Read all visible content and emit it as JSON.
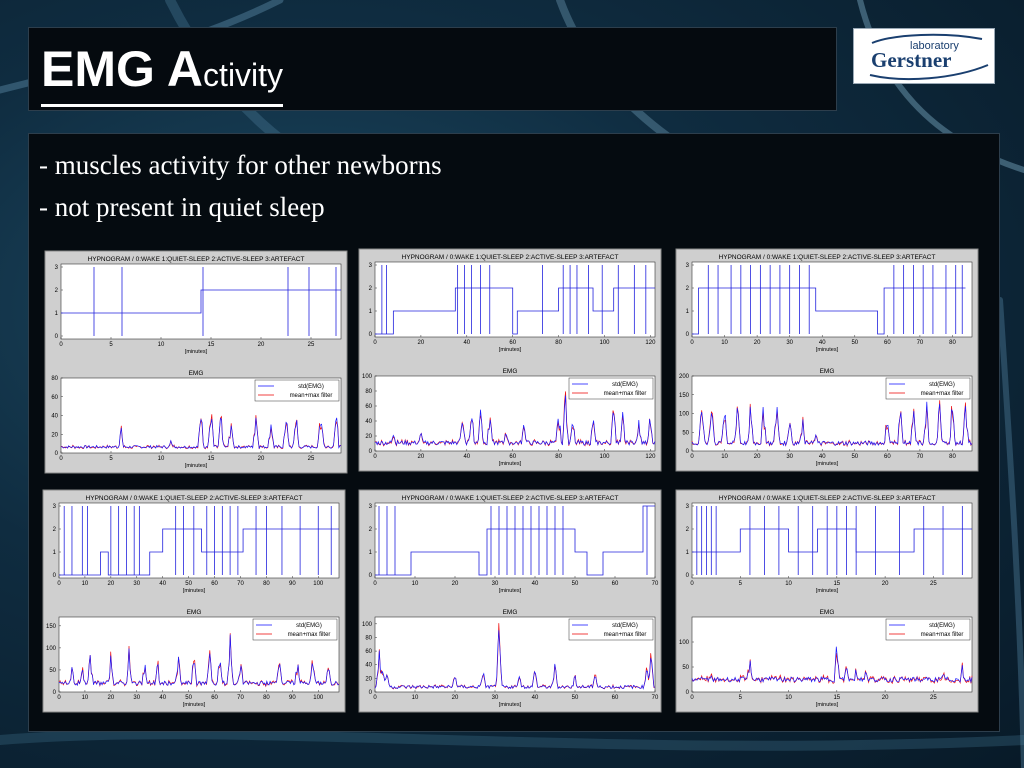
{
  "slide": {
    "title_main": "EMG A",
    "title_rest": "ctivity",
    "bullets": [
      "- muscles activity for other newborns",
      "- not present in quiet sleep"
    ]
  },
  "logo": {
    "top": "laboratory",
    "bottom": "Gerstner",
    "color": "#1a3f6f"
  },
  "colors": {
    "std": "#1a1aff",
    "filter": "#ee1111",
    "hypno": "#2222dd"
  },
  "chart_data": [
    {
      "type": "line",
      "hypnogram": {
        "title": "HYPNOGRAM / 0:WAKE  1:QUIET-SLEEP  2:ACTIVE-SLEEP  3:ARTEFACT",
        "xlabel": "[minutes]",
        "xlim": [
          0,
          28
        ],
        "ylim": [
          0,
          3
        ],
        "xticks": [
          0,
          5,
          10,
          15,
          20,
          25
        ],
        "yticks": [
          0,
          1,
          2,
          3
        ],
        "segments": [
          [
            0,
            1
          ],
          [
            14,
            2
          ],
          [
            28,
            2
          ]
        ],
        "spikes": [
          3.3,
          6.1,
          14.2,
          22.7,
          24.8,
          27.5
        ]
      },
      "emg": {
        "title": "EMG",
        "xlabel": "[minutes]",
        "xlim": [
          0,
          28
        ],
        "ylim": [
          0,
          80
        ],
        "xticks": [
          0,
          5,
          10,
          15,
          20,
          25
        ],
        "yticks": [
          0,
          20,
          40,
          60,
          80
        ],
        "legend": [
          "std(EMG)",
          "mean+max filter"
        ],
        "baseline": 5,
        "noise": 3,
        "bursts": [
          [
            6,
            30
          ],
          [
            11,
            22
          ],
          [
            14,
            50
          ],
          [
            15,
            55
          ],
          [
            16,
            45
          ],
          [
            17,
            40
          ],
          [
            19.5,
            50
          ],
          [
            21,
            45
          ],
          [
            22.5,
            48
          ],
          [
            23.5,
            50
          ],
          [
            26,
            60
          ],
          [
            27.5,
            55
          ]
        ]
      }
    },
    {
      "type": "line",
      "hypnogram": {
        "title": "HYPNOGRAM / 0:WAKE  1:QUIET-SLEEP  2:ACTIVE-SLEEP  3:ARTEFACT",
        "xlabel": "[minutes]",
        "xlim": [
          0,
          122
        ],
        "ylim": [
          0,
          3
        ],
        "xticks": [
          0,
          20,
          40,
          60,
          80,
          100,
          120
        ],
        "yticks": [
          0,
          1,
          2,
          3
        ],
        "segments": [
          [
            0,
            0
          ],
          [
            8,
            1
          ],
          [
            35,
            2
          ],
          [
            60,
            0
          ],
          [
            62,
            1
          ],
          [
            80,
            2
          ],
          [
            95,
            1
          ],
          [
            104,
            2
          ],
          [
            122,
            2
          ]
        ],
        "spikes": [
          3,
          5,
          36,
          39,
          42,
          46,
          50,
          73,
          82,
          85,
          88,
          93,
          99,
          106,
          113,
          118
        ]
      },
      "emg": {
        "title": "EMG",
        "xlabel": "[minutes]",
        "xlim": [
          0,
          122
        ],
        "ylim": [
          0,
          100
        ],
        "xticks": [
          0,
          20,
          40,
          60,
          80,
          100,
          120
        ],
        "yticks": [
          0,
          20,
          40,
          60,
          80,
          100
        ],
        "legend": [
          "std(EMG)",
          "mean+max filter"
        ],
        "baseline": 8,
        "noise": 6,
        "bursts": [
          [
            8,
            35
          ],
          [
            20,
            30
          ],
          [
            38,
            60
          ],
          [
            42,
            75
          ],
          [
            46,
            70
          ],
          [
            50,
            55
          ],
          [
            57,
            40
          ],
          [
            65,
            50
          ],
          [
            80,
            65
          ],
          [
            83,
            80
          ],
          [
            86,
            60
          ],
          [
            95,
            55
          ],
          [
            104,
            70
          ],
          [
            108,
            60
          ],
          [
            115,
            50
          ],
          [
            120,
            60
          ]
        ]
      }
    },
    {
      "type": "line",
      "hypnogram": {
        "title": "HYPNOGRAM / 0:WAKE  1:QUIET-SLEEP  2:ACTIVE-SLEEP  3:ARTEFACT",
        "xlabel": "[minutes]",
        "xlim": [
          0,
          86
        ],
        "ylim": [
          0,
          3
        ],
        "xticks": [
          0,
          10,
          20,
          30,
          40,
          50,
          60,
          70,
          80
        ],
        "yticks": [
          0,
          1,
          2,
          3
        ],
        "segments": [
          [
            0,
            0
          ],
          [
            2,
            2
          ],
          [
            38,
            1
          ],
          [
            57,
            0
          ],
          [
            59,
            2
          ],
          [
            84,
            2
          ]
        ],
        "spikes": [
          5,
          8,
          12,
          15,
          18,
          21,
          24,
          27,
          30,
          33,
          36,
          62,
          65,
          68,
          71,
          74,
          78,
          81,
          83
        ]
      },
      "emg": {
        "title": "EMG",
        "xlabel": "[minutes]",
        "xlim": [
          0,
          86
        ],
        "ylim": [
          0,
          200
        ],
        "xticks": [
          0,
          10,
          20,
          30,
          40,
          50,
          60,
          70,
          80
        ],
        "yticks": [
          0,
          50,
          100,
          150,
          200
        ],
        "legend": [
          "std(EMG)",
          "mean+max filter"
        ],
        "baseline": 15,
        "noise": 12,
        "bursts": [
          [
            3,
            150
          ],
          [
            6,
            170
          ],
          [
            10,
            160
          ],
          [
            14,
            165
          ],
          [
            18,
            150
          ],
          [
            22,
            140
          ],
          [
            26,
            155
          ],
          [
            30,
            120
          ],
          [
            34,
            100
          ],
          [
            38,
            60
          ],
          [
            60,
            110
          ],
          [
            64,
            140
          ],
          [
            68,
            130
          ],
          [
            72,
            150
          ],
          [
            76,
            140
          ],
          [
            80,
            150
          ],
          [
            84,
            160
          ]
        ]
      }
    },
    {
      "type": "line",
      "hypnogram": {
        "title": "HYPNOGRAM / 0:WAKE  1:QUIET-SLEEP  2:ACTIVE-SLEEP  3:ARTEFACT",
        "xlabel": "[minutes]",
        "xlim": [
          0,
          108
        ],
        "ylim": [
          0,
          3
        ],
        "xticks": [
          0,
          10,
          20,
          30,
          40,
          50,
          60,
          70,
          80,
          90,
          100
        ],
        "yticks": [
          0,
          1,
          2,
          3
        ],
        "segments": [
          [
            0,
            0
          ],
          [
            8,
            0
          ],
          [
            16,
            1
          ],
          [
            19,
            0
          ],
          [
            35,
            1
          ],
          [
            40,
            2
          ],
          [
            55,
            1
          ],
          [
            71,
            2
          ],
          [
            108,
            2
          ]
        ],
        "spikes": [
          2,
          5,
          9,
          11,
          20,
          23,
          26,
          29,
          31,
          45,
          48,
          52,
          57,
          60,
          63,
          66,
          69,
          76,
          80,
          86,
          93,
          100,
          105
        ]
      },
      "emg": {
        "title": "EMG",
        "xlabel": "[minutes]",
        "xlim": [
          0,
          108
        ],
        "ylim": [
          0,
          170
        ],
        "xticks": [
          0,
          10,
          20,
          30,
          40,
          50,
          60,
          70,
          80,
          90,
          100
        ],
        "yticks": [
          0,
          50,
          100,
          150
        ],
        "legend": [
          "std(EMG)",
          "mean+max filter"
        ],
        "baseline": 15,
        "noise": 10,
        "bursts": [
          [
            5,
            70
          ],
          [
            9,
            60
          ],
          [
            12,
            110
          ],
          [
            20,
            90
          ],
          [
            27,
            100
          ],
          [
            33,
            80
          ],
          [
            38,
            75
          ],
          [
            46,
            90
          ],
          [
            52,
            110
          ],
          [
            58,
            120
          ],
          [
            62,
            100
          ],
          [
            66,
            140
          ],
          [
            70,
            80
          ],
          [
            85,
            120
          ],
          [
            92,
            90
          ],
          [
            98,
            100
          ],
          [
            104,
            90
          ]
        ]
      }
    },
    {
      "type": "line",
      "hypnogram": {
        "title": "HYPNOGRAM / 0:WAKE  1:QUIET-SLEEP  2:ACTIVE-SLEEP  3:ARTEFACT",
        "xlabel": "[minutes]",
        "xlim": [
          0,
          70
        ],
        "ylim": [
          0,
          3
        ],
        "xticks": [
          0,
          10,
          20,
          30,
          40,
          50,
          60,
          70
        ],
        "yticks": [
          0,
          1,
          2,
          3
        ],
        "segments": [
          [
            0,
            0
          ],
          [
            4,
            0
          ],
          [
            9,
            1
          ],
          [
            26,
            0
          ],
          [
            28,
            2
          ],
          [
            50,
            1
          ],
          [
            53,
            0
          ],
          [
            57,
            1
          ],
          [
            67,
            3
          ],
          [
            70,
            3
          ]
        ],
        "spikes": [
          1,
          3,
          5,
          29,
          31,
          33,
          35,
          37,
          39,
          41,
          43,
          45,
          47,
          68
        ]
      },
      "emg": {
        "title": "EMG",
        "xlabel": "[minutes]",
        "xlim": [
          0,
          70
        ],
        "ylim": [
          0,
          110
        ],
        "xticks": [
          0,
          10,
          20,
          30,
          40,
          50,
          60,
          70
        ],
        "yticks": [
          0,
          20,
          40,
          60,
          80,
          100
        ],
        "legend": [
          "std(EMG)",
          "mean+max filter"
        ],
        "baseline": 5,
        "noise": 5,
        "bursts": [
          [
            1,
            70
          ],
          [
            2,
            50
          ],
          [
            3,
            40
          ],
          [
            20,
            30
          ],
          [
            27,
            40
          ],
          [
            31,
            100
          ],
          [
            36,
            35
          ],
          [
            40,
            40
          ],
          [
            45,
            45
          ],
          [
            50,
            30
          ],
          [
            55,
            35
          ],
          [
            68,
            55
          ],
          [
            69,
            60
          ]
        ]
      }
    },
    {
      "type": "line",
      "hypnogram": {
        "title": "HYPNOGRAM / 0:WAKE  1:QUIET-SLEEP  2:ACTIVE-SLEEP  3:ARTEFACT",
        "xlabel": "[minutes]",
        "xlim": [
          0,
          29
        ],
        "ylim": [
          0,
          3
        ],
        "xticks": [
          0,
          5,
          10,
          15,
          20,
          25
        ],
        "yticks": [
          0,
          1,
          2,
          3
        ],
        "segments": [
          [
            0,
            1
          ],
          [
            5,
            2
          ],
          [
            10,
            1
          ],
          [
            13,
            2
          ],
          [
            17,
            1
          ],
          [
            23,
            2
          ],
          [
            29,
            2
          ]
        ],
        "spikes": [
          0.5,
          1,
          1.5,
          2,
          2.5,
          6,
          7.5,
          9,
          11,
          12.5,
          14,
          15,
          16,
          17,
          19,
          21.5,
          24,
          26,
          28
        ]
      },
      "emg": {
        "title": "EMG",
        "xlabel": "[minutes]",
        "xlim": [
          0,
          29
        ],
        "ylim": [
          0,
          150
        ],
        "xticks": [
          0,
          5,
          10,
          15,
          20,
          25
        ],
        "yticks": [
          0,
          50,
          100
        ],
        "legend": [
          "std(EMG)",
          "mean+max filter"
        ],
        "baseline": 20,
        "noise": 10,
        "bursts": [
          [
            0.5,
            40
          ],
          [
            2,
            35
          ],
          [
            6,
            90
          ],
          [
            10,
            30
          ],
          [
            15,
            110
          ],
          [
            16,
            70
          ],
          [
            17,
            60
          ],
          [
            18,
            55
          ],
          [
            20,
            40
          ],
          [
            24,
            40
          ],
          [
            26,
            50
          ],
          [
            28,
            55
          ]
        ]
      }
    }
  ]
}
